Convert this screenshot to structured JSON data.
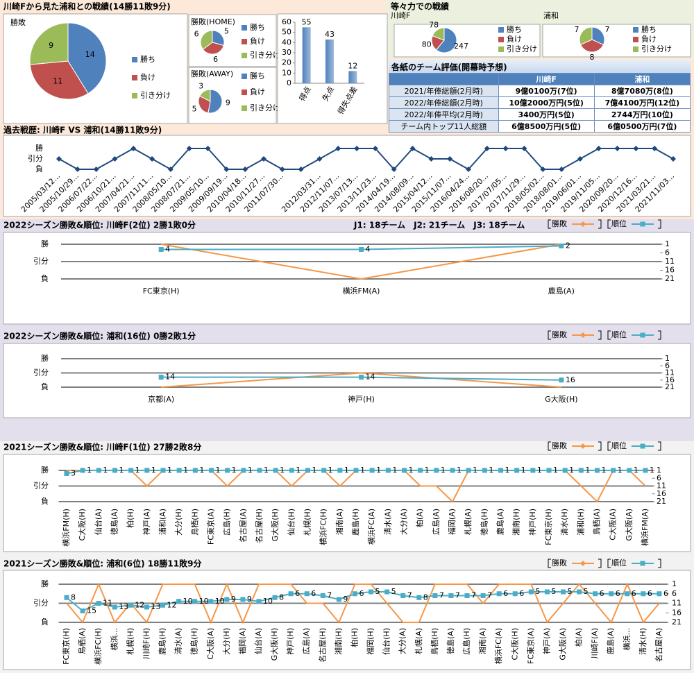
{
  "title": "川崎Fから見た浦和との戦績(14勝11敗9分)",
  "section_title": "等々力での戦績",
  "table": {
    "title": "各紙のチーム評価(開幕時予想)",
    "header": [
      "川崎F",
      "浦和"
    ],
    "rows": [
      [
        "2021/年俸総額(2月時)",
        "9億0100万(7位)",
        "8億7080万(8位)"
      ],
      [
        "2022/年俸総額(2月時)",
        "10億2000万円(5位)",
        "7億4100万円(12位)"
      ],
      [
        "2022/年俸平均(2月時)",
        "3400万円(5位)",
        "2744万円(10位)"
      ],
      [
        "チーム内トップ11人総額",
        "6億8500万円(5位)",
        "6億0500万円(7位)"
      ]
    ]
  },
  "chart_data": [
    {
      "type": "pie",
      "title": "勝敗",
      "categories": [
        "勝ち",
        "負け",
        "引き分け"
      ],
      "values": [
        14,
        11,
        9
      ],
      "colors": [
        "#4f81bd",
        "#c0504d",
        "#9bbb59"
      ],
      "legend": "right"
    },
    {
      "type": "pie",
      "title": "勝敗(HOME)",
      "categories": [
        "勝ち",
        "負け",
        "引き分け"
      ],
      "values": [
        5,
        6,
        6
      ],
      "colors": [
        "#4f81bd",
        "#c0504d",
        "#9bbb59"
      ],
      "legend": "right"
    },
    {
      "type": "pie",
      "title": "勝敗(AWAY)",
      "categories": [
        "勝ち",
        "負け",
        "引き分け"
      ],
      "values": [
        9,
        5,
        3
      ],
      "colors": [
        "#4f81bd",
        "#c0504d",
        "#9bbb59"
      ],
      "legend": "right"
    },
    {
      "type": "bar",
      "categories": [
        "得点",
        "失点",
        "得失点差"
      ],
      "values": [
        55,
        43,
        12
      ],
      "color": "#4f81bd",
      "ylim": [
        0,
        60
      ],
      "yticks": [
        0,
        10,
        20,
        30,
        40,
        50,
        60
      ],
      "grid": false
    },
    {
      "type": "pie",
      "title": "川崎F",
      "categories": [
        "勝ち",
        "負け",
        "引き分け"
      ],
      "values": [
        247,
        80,
        78
      ],
      "colors": [
        "#4f81bd",
        "#c0504d",
        "#9bbb59"
      ],
      "legend": "right"
    },
    {
      "type": "pie",
      "title": "浦和",
      "categories": [
        "勝ち",
        "負け",
        "引き分け"
      ],
      "values": [
        7,
        8,
        7
      ],
      "colors": [
        "#4f81bd",
        "#c0504d",
        "#9bbb59"
      ],
      "legend": "right"
    },
    {
      "type": "line",
      "title": "過去戦歴: 川崎F VS 浦和(14勝11敗9分)",
      "categories": [
        "2005/03/12...",
        "2005/10/29...",
        "2006/07/22...",
        "2006/10/21...",
        "2007/04/21...",
        "2007/11/11...",
        "2008/05/10...",
        "2008/07/21...",
        "2009/05/10...",
        "2009/09/19...",
        "2010/04/18...",
        "2010/11/27...",
        "2011/07/30...",
        null,
        "2012/03/31...",
        "2012/11/07...",
        "2013/07/13...",
        "2013/11/23...",
        "2014/04/19...",
        "2014/08/09...",
        "2015/04/12...",
        "2015/11/07...",
        "2016/04/24...",
        "2016/08/20...",
        "2017/07/05...",
        "2017/11/29...",
        "2018/05/02...",
        "2018/08/01...",
        "2019/06/01...",
        "2019/11/05...",
        "2020/09/20...",
        "2020/12/16...",
        "2021/03/21...",
        "2021/11/03..."
      ],
      "series": [
        {
          "color": "#1f497d",
          "marker": "diamond",
          "values": [
            0,
            -1,
            -1,
            0,
            1,
            0,
            -1,
            1,
            1,
            -1,
            -1,
            0,
            -1,
            -1,
            0,
            1,
            1,
            1,
            -1,
            1,
            0,
            0,
            -1,
            1,
            1,
            1,
            -1,
            -1,
            0,
            1,
            1,
            1,
            1,
            0
          ]
        }
      ],
      "ylim": [
        -1,
        1
      ],
      "yticks": [
        {
          "value": 1,
          "label": "勝"
        },
        {
          "value": 0,
          "label": "引分"
        },
        {
          "value": -1,
          "label": "負"
        }
      ],
      "grid": false
    },
    {
      "type": "line",
      "title": "2022シーズン勝敗&順位: 川崎F(2位) 2勝1敗0分",
      "annotation": "J1: 18チーム　J2: 21チーム　J3: 18チーム",
      "categories": [
        "FC東京(H)",
        "横浜FM(A)",
        "鹿島(A)"
      ],
      "series": [
        {
          "name": "勝敗",
          "color": "#f79646",
          "values": [
            1,
            -1,
            1
          ]
        },
        {
          "name": "順位",
          "color": "#4bacc6",
          "marker": "square",
          "data_labels": true,
          "axis": "y2",
          "values": [
            4,
            4,
            2
          ]
        }
      ],
      "ylim": [
        -1,
        1
      ],
      "yticks": [
        {
          "value": 1,
          "label": "勝"
        },
        {
          "value": 0,
          "label": "引分"
        },
        {
          "value": -1,
          "label": "負"
        }
      ],
      "y2lim": [
        21,
        1
      ],
      "y2ticks": [
        1,
        6,
        11,
        16,
        21
      ],
      "grid": true,
      "legend": "top-right"
    },
    {
      "type": "line",
      "title": "2022シーズン勝敗&順位: 浦和(16位) 0勝2敗1分",
      "categories": [
        "京都(A)",
        "神戸(H)",
        "G大阪(H)"
      ],
      "series": [
        {
          "name": "勝敗",
          "color": "#f79646",
          "values": [
            -1,
            0,
            -1
          ]
        },
        {
          "name": "順位",
          "color": "#4bacc6",
          "marker": "square",
          "data_labels": true,
          "axis": "y2",
          "values": [
            14,
            14,
            16
          ]
        }
      ],
      "ylim": [
        -1,
        1
      ],
      "yticks": [
        {
          "value": 1,
          "label": "勝"
        },
        {
          "value": 0,
          "label": "引分"
        },
        {
          "value": -1,
          "label": "負"
        }
      ],
      "y2lim": [
        21,
        1
      ],
      "y2ticks": [
        1,
        6,
        11,
        16,
        21
      ],
      "grid": true,
      "legend": "top-right"
    },
    {
      "type": "line",
      "title": "2021シーズン勝敗&順位: 川崎F(1位) 27勝2敗8分",
      "categories": [
        "横浜FM(H)",
        "C大阪(H)",
        "仙台(A)",
        "徳島(A)",
        "柏(H)",
        "神戸(A)",
        "浦和(A)",
        "大分(H)",
        "鳥栖(H)",
        "FC東京(A)",
        "広島(H)",
        "名古屋(A)",
        "名古屋(H)",
        "G大阪(H)",
        "仙台(H)",
        "札幌(H)",
        "横浜FC(H)",
        "湘南(A)",
        "鹿島(H)",
        "横浜FC(A)",
        "清水(A)",
        "大分(A)",
        "柏(A)",
        "広島(A)",
        "福岡(A)",
        "札幌(A)",
        "徳島(H)",
        "鹿島(A)",
        "湘南(H)",
        "神戸(H)",
        "FC東京(H)",
        "清水(H)",
        "浦和(H)",
        "鳥栖(A)",
        "C大阪(A)",
        "G大阪(A)",
        "横浜FM(A)"
      ],
      "series": [
        {
          "name": "勝敗",
          "color": "#f79646",
          "values": [
            1,
            1,
            1,
            1,
            1,
            0,
            1,
            1,
            1,
            1,
            0,
            1,
            1,
            1,
            0,
            1,
            1,
            0,
            1,
            1,
            1,
            1,
            0,
            0,
            -1,
            1,
            1,
            1,
            1,
            1,
            1,
            1,
            0,
            -1,
            1,
            1,
            0
          ]
        },
        {
          "name": "順位",
          "color": "#4bacc6",
          "marker": "square",
          "data_labels": true,
          "axis": "y2",
          "values": [
            3,
            1,
            1,
            1,
            1,
            1,
            1,
            1,
            1,
            1,
            1,
            1,
            1,
            1,
            1,
            1,
            1,
            1,
            1,
            1,
            1,
            1,
            1,
            1,
            1,
            1,
            1,
            1,
            1,
            1,
            1,
            1,
            1,
            1,
            1,
            1,
            1
          ]
        }
      ],
      "ylim": [
        -1,
        1
      ],
      "yticks": [
        {
          "value": 1,
          "label": "勝"
        },
        {
          "value": 0,
          "label": "引分"
        },
        {
          "value": -1,
          "label": "負"
        }
      ],
      "y2lim": [
        21,
        1
      ],
      "y2ticks": [
        1,
        6,
        11,
        16,
        21
      ],
      "grid": true,
      "legend": "top-right"
    },
    {
      "type": "line",
      "title": "2021シーズン勝敗&順位: 浦和(6位) 18勝11敗9分",
      "categories": [
        "FC東京(H)",
        "鳥栖(A)",
        "横浜FC(H)",
        "横浜...",
        "札幌(H)",
        "川崎F(H)",
        "鹿島(H)",
        "清水(A)",
        "徳島(H)",
        "C大阪(A)",
        "大分(H)",
        "福岡(A)",
        "仙台(A)",
        "G大阪(H)",
        "神戸(H)",
        "広島(A)",
        "名古屋(H)",
        "湘南(H)",
        "柏(H)",
        "福岡(H)",
        "仙台(H)",
        "大分(A)",
        "札幌(A)",
        "鳥栖(H)",
        "徳島(A)",
        "広島(H)",
        "湘南(A)",
        "横浜FC(A)",
        "C大阪(H)",
        "FC東京(A)",
        "神戸(A)",
        "G大阪(A)",
        "柏(A)",
        "川崎F(A)",
        "鹿島(A)",
        "横浜...",
        "清水(H)",
        "名古屋(A)"
      ],
      "series": [
        {
          "name": "勝敗",
          "color": "#f79646",
          "values": [
            0,
            -1,
            1,
            -1,
            0,
            -1,
            1,
            1,
            1,
            -1,
            1,
            -1,
            1,
            1,
            1,
            0,
            0,
            -1,
            1,
            1,
            0,
            -1,
            -1,
            1,
            1,
            1,
            0,
            1,
            1,
            1,
            -1,
            0,
            1,
            0,
            -1,
            1,
            -1,
            0
          ]
        },
        {
          "name": "順位",
          "color": "#4bacc6",
          "marker": "square",
          "data_labels": true,
          "axis": "y2",
          "values": [
            8,
            15,
            11,
            13,
            12,
            13,
            12,
            10,
            10,
            10,
            9,
            9,
            10,
            8,
            6,
            6,
            7,
            9,
            6,
            5,
            5,
            7,
            8,
            7,
            7,
            7,
            7,
            6,
            6,
            5,
            5,
            5,
            5,
            6,
            6,
            6,
            6,
            6
          ]
        }
      ],
      "ylim": [
        -1,
        1
      ],
      "yticks": [
        {
          "value": 1,
          "label": "勝"
        },
        {
          "value": 0,
          "label": "引分"
        },
        {
          "value": -1,
          "label": "負"
        }
      ],
      "y2lim": [
        21,
        1
      ],
      "y2ticks": [
        1,
        6,
        11,
        16,
        21
      ],
      "grid": true,
      "legend": "top-right"
    }
  ]
}
